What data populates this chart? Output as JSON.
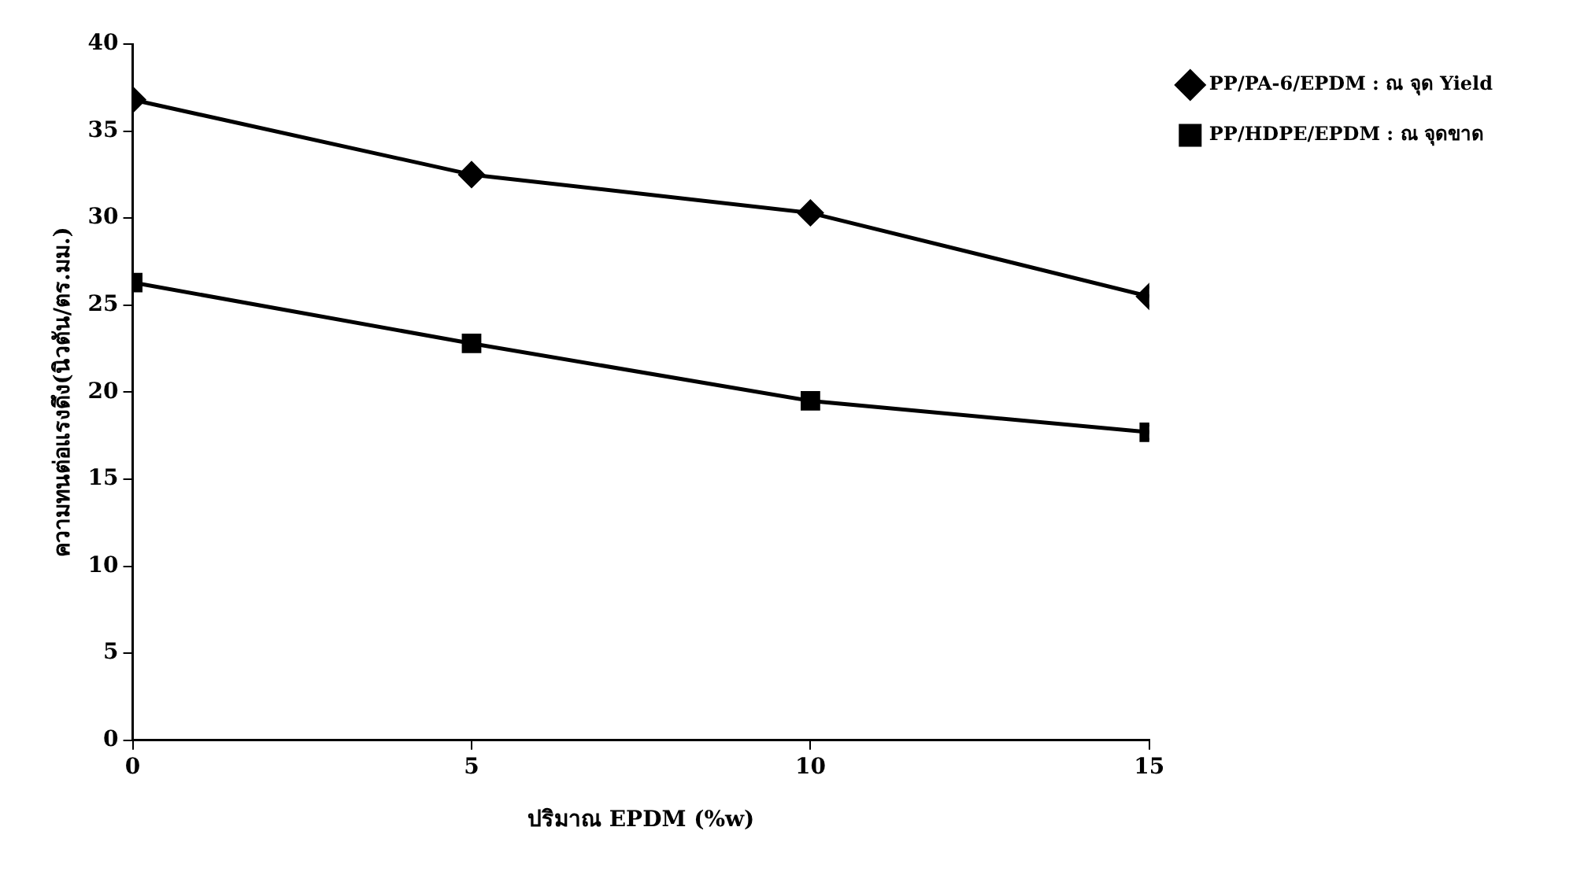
{
  "chart_data": {
    "type": "line",
    "xlabel": "ปริมาณ EPDM (%w)",
    "ylabel": "ความทนต่อแรงดึง(นิวตัน/ตร.มม.)",
    "x": [
      0,
      5,
      10,
      15
    ],
    "series": [
      {
        "name": "PP/PA-6/EPDM : ณ จุด Yield",
        "color": "#000000",
        "marker": "diamond",
        "values": [
          36.8,
          32.5,
          30.3,
          25.5
        ]
      },
      {
        "name": "PP/HDPE/EPDM : ณ จุดขาด",
        "color": "#000000",
        "marker": "square",
        "values": [
          26.3,
          22.8,
          19.5,
          17.7
        ]
      }
    ],
    "xlim": [
      0,
      15
    ],
    "xticks": [
      0,
      5,
      10,
      15
    ],
    "ylim": [
      0,
      40
    ],
    "yticks": [
      0,
      5,
      10,
      15,
      20,
      25,
      30,
      35,
      40
    ],
    "grid": false,
    "legend": "top right",
    "line_style": "solid"
  }
}
